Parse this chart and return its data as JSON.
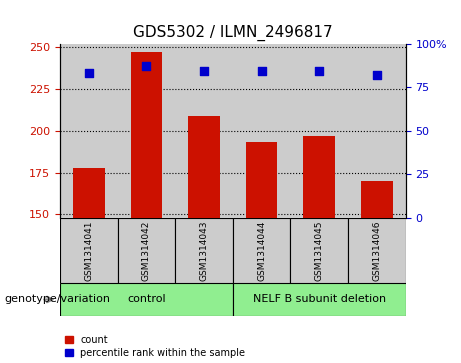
{
  "title": "GDS5302 / ILMN_2496817",
  "samples": [
    "GSM1314041",
    "GSM1314042",
    "GSM1314043",
    "GSM1314044",
    "GSM1314045",
    "GSM1314046"
  ],
  "counts": [
    178,
    247,
    209,
    193,
    197,
    170
  ],
  "percentile_ranks": [
    83,
    87,
    84,
    84,
    84,
    82
  ],
  "ylim_left": [
    148,
    252
  ],
  "ylim_right": [
    0,
    100
  ],
  "yticks_left": [
    150,
    175,
    200,
    225,
    250
  ],
  "yticks_right": [
    0,
    25,
    50,
    75,
    100
  ],
  "bar_color": "#cc1100",
  "dot_color": "#0000cc",
  "bg_color": "#ffffff",
  "sample_bg": "#cccccc",
  "group_bg": "#90ee90",
  "group_labels": [
    "control",
    "NELF B subunit deletion"
  ],
  "legend_count": "count",
  "legend_pct": "percentile rank within the sample",
  "ylabel_left_color": "#cc1100",
  "ylabel_right_color": "#0000cc",
  "bar_width": 0.55,
  "dot_size": 30,
  "title_fontsize": 11,
  "tick_fontsize": 8,
  "label_fontsize": 7,
  "sample_fontsize": 6.5,
  "group_fontsize": 8,
  "genotype_fontsize": 8
}
